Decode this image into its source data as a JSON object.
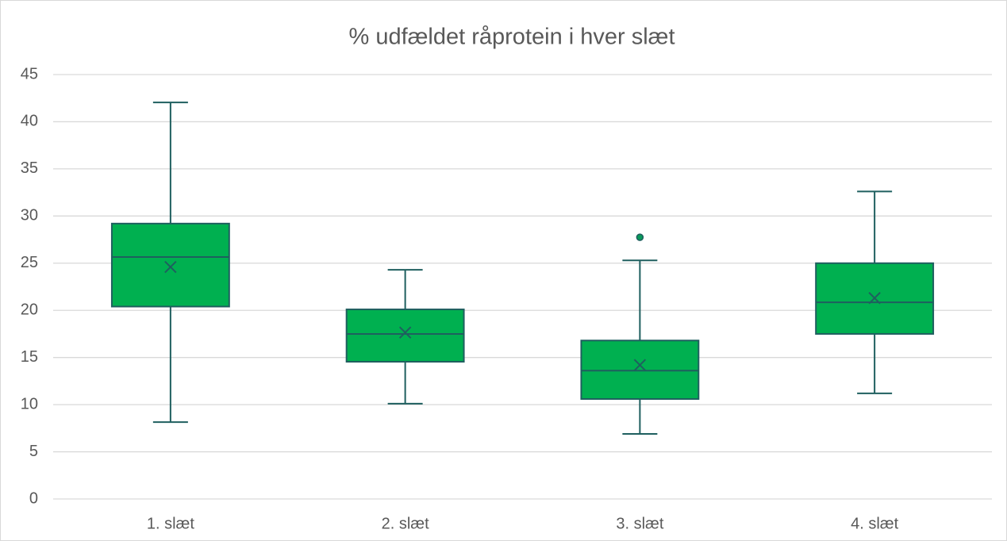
{
  "chart_data": {
    "type": "box",
    "title": "% udfældet råprotein i hver slæt",
    "categories": [
      "1. slæt",
      "2. slæt",
      "3. slæt",
      "4. slæt"
    ],
    "boxes": [
      {
        "min": 8.15,
        "q1": 20.4,
        "median": 25.65,
        "q3": 29.2,
        "max": 42.05,
        "mean": 24.6,
        "outliers": []
      },
      {
        "min": 10.1,
        "q1": 14.55,
        "median": 17.5,
        "q3": 20.1,
        "max": 24.3,
        "mean": 17.65,
        "outliers": []
      },
      {
        "min": 6.9,
        "q1": 10.6,
        "median": 13.6,
        "q3": 16.8,
        "max": 25.3,
        "mean": 14.2,
        "outliers": [
          27.75
        ]
      },
      {
        "min": 11.2,
        "q1": 17.5,
        "median": 20.85,
        "q3": 25.0,
        "max": 32.6,
        "mean": 21.3,
        "outliers": []
      }
    ],
    "color": "#00b050",
    "line_color": "#1f5f5f",
    "ylim": [
      0,
      45
    ],
    "yticks": [
      0,
      5,
      10,
      15,
      20,
      25,
      30,
      35,
      40,
      45
    ],
    "grid": true
  }
}
